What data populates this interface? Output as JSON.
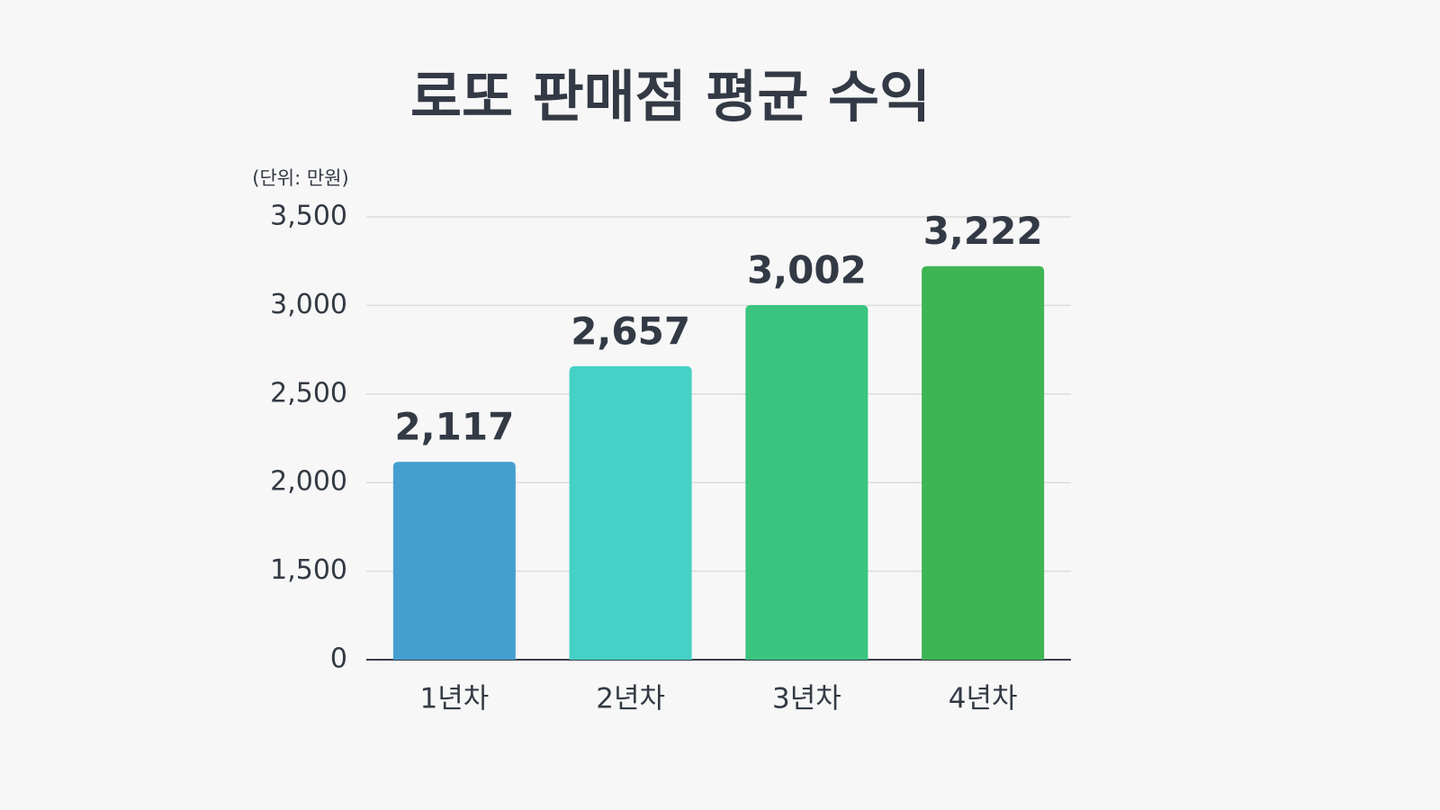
{
  "chart_data": {
    "type": "bar",
    "title": "로또 판매점 평균 수익",
    "y_axis_label": "(단위: 만원)",
    "categories": [
      "1년차",
      "2년차",
      "3년차",
      "4년차"
    ],
    "values": [
      2117,
      2657,
      3002,
      3222
    ],
    "value_labels": [
      "2,117",
      "2,657",
      "3,002",
      "3,222"
    ],
    "colors": [
      "#449fd0",
      "#45d1c5",
      "#3ac47f",
      "#3db553"
    ],
    "ylim": [
      0,
      3500
    ],
    "yticks": [
      0,
      {
        "value": 1500,
        "label": "1,500"
      },
      {
        "value": 2000,
        "label": "2,000"
      },
      {
        "value": 2500,
        "label": "2,500"
      },
      {
        "value": 3000,
        "label": "3,000"
      },
      {
        "value": 3500,
        "label": "3,500"
      }
    ],
    "grid": true
  }
}
